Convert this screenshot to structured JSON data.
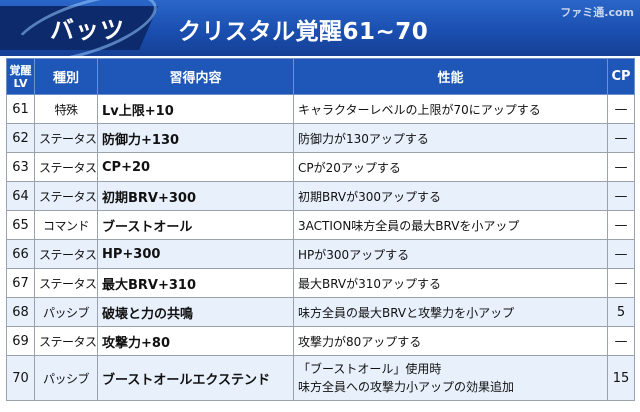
{
  "banner": {
    "character": "バッツ",
    "title": "クリスタル覚醒61~70",
    "watermark": "ファミ通.com"
  },
  "columns": {
    "lv_line1": "覚醒",
    "lv_line2": "LV",
    "type": "種別",
    "content": "習得内容",
    "effect": "性能",
    "cp": "CP"
  },
  "rows": [
    {
      "lv": "61",
      "type": "特殊",
      "content": "Lv上限+10",
      "effect1": "キャラクターレベルの上限が70にアップする",
      "effect2": "",
      "cp": "—"
    },
    {
      "lv": "62",
      "type": "ステータス",
      "content": "防御力+130",
      "effect1": "防御力が130アップする",
      "effect2": "",
      "cp": "—"
    },
    {
      "lv": "63",
      "type": "ステータス",
      "content": "CP+20",
      "effect1": "CPが20アップする",
      "effect2": "",
      "cp": "—"
    },
    {
      "lv": "64",
      "type": "ステータス",
      "content": "初期BRV+300",
      "effect1": "初期BRVが300アップする",
      "effect2": "",
      "cp": "—"
    },
    {
      "lv": "65",
      "type": "コマンド",
      "content": "ブーストオール",
      "effect1": "3ACTION味方全員の最大BRVを小アップ",
      "effect2": "",
      "cp": "—"
    },
    {
      "lv": "66",
      "type": "ステータス",
      "content": "HP+300",
      "effect1": "HPが300アップする",
      "effect2": "",
      "cp": "—"
    },
    {
      "lv": "67",
      "type": "ステータス",
      "content": "最大BRV+310",
      "effect1": "最大BRVが310アップする",
      "effect2": "",
      "cp": "—"
    },
    {
      "lv": "68",
      "type": "パッシブ",
      "content": "破壊と力の共鳴",
      "effect1": "味方全員の最大BRVと攻撃力を小アップ",
      "effect2": "",
      "cp": "5"
    },
    {
      "lv": "69",
      "type": "ステータス",
      "content": "攻撃力+80",
      "effect1": "攻撃力が80アップする",
      "effect2": "",
      "cp": "—"
    },
    {
      "lv": "70",
      "type": "パッシブ",
      "content": "ブーストオールエクステンド",
      "effect1": "「ブーストオール」使用時",
      "effect2": "味方全員への攻撃力小アップの効果追加",
      "cp": "15"
    }
  ]
}
